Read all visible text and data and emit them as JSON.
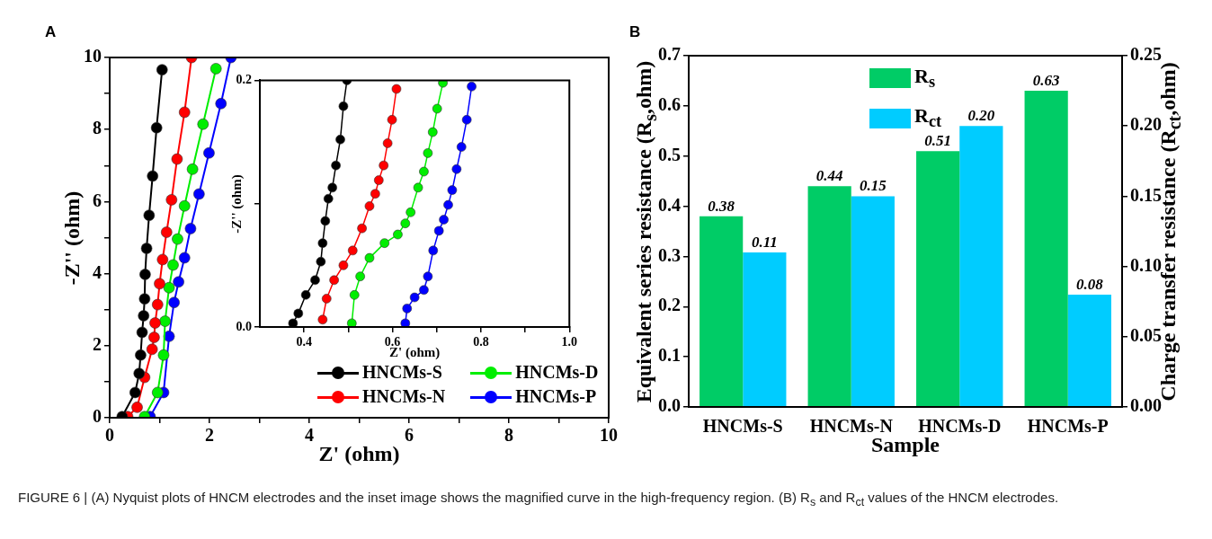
{
  "chart_data": [
    {
      "type": "line",
      "title": "A",
      "xlabel": "Z' (ohm)",
      "ylabel": "-Z'' (ohm)",
      "marker": "circle",
      "line_style": "solid",
      "grid": false,
      "legend": "bottom right",
      "xlim": [
        0,
        10
      ],
      "ylim": [
        0,
        10
      ],
      "xticks": [
        0,
        {
          "value": 1,
          "label": null
        },
        2,
        {
          "value": 3,
          "label": null
        },
        4,
        {
          "value": 5,
          "label": null
        },
        6,
        {
          "value": 7,
          "label": null
        },
        8,
        {
          "value": 9,
          "label": null
        },
        10
      ],
      "yticks": [
        0,
        {
          "value": 1,
          "label": null
        },
        2,
        {
          "value": 3,
          "label": null
        },
        4,
        {
          "value": 5,
          "label": null
        },
        6,
        {
          "value": 7,
          "label": null
        },
        8,
        {
          "value": 9,
          "label": null
        },
        10
      ],
      "annotations": [
        "FIGURE 6 | (A) Nyquist plots of HNCM electrodes and the inset image shows the magnified curve in the high-frequency region. (B) R$_{s}$ and R$_{ct}$ values of the HNCM electrodes."
      ],
      "series": [
        {
          "name": "HNCMs-S",
          "color": "#000000",
          "x": [
            0.25,
            0.51,
            0.59,
            0.62,
            0.65,
            0.68,
            0.7,
            0.71,
            0.74,
            0.79,
            0.86,
            0.94,
            1.05
          ],
          "values": [
            0.03,
            0.7,
            1.23,
            1.74,
            2.37,
            2.83,
            3.3,
            3.98,
            4.7,
            5.62,
            6.71,
            8.05,
            9.66
          ]
        },
        {
          "name": "HNCMs-N",
          "color": "#ff0000",
          "x": [
            0.36,
            0.55,
            0.7,
            0.85,
            0.89,
            0.91,
            0.96,
            1.0,
            1.06,
            1.14,
            1.24,
            1.35,
            1.5,
            1.64
          ],
          "values": [
            0.03,
            0.29,
            1.12,
            1.9,
            2.23,
            2.63,
            3.14,
            3.72,
            4.39,
            5.15,
            6.05,
            7.18,
            8.48,
            10
          ]
        },
        {
          "name": "HNCMs-D",
          "color": "#00ee00",
          "x": [
            0.7,
            0.96,
            1.08,
            1.11,
            1.19,
            1.27,
            1.36,
            1.5,
            1.66,
            1.87,
            2.13
          ],
          "values": [
            0.03,
            0.7,
            1.74,
            2.68,
            3.61,
            4.24,
            4.96,
            5.88,
            6.9,
            8.15,
            9.69
          ]
        },
        {
          "name": "HNCMs-P",
          "color": "#0000ff",
          "x": [
            0.81,
            1.08,
            1.19,
            1.29,
            1.38,
            1.5,
            1.62,
            1.79,
            1.99,
            2.23,
            2.43
          ],
          "values": [
            0.03,
            0.7,
            2.26,
            3.2,
            3.77,
            4.44,
            5.25,
            6.21,
            7.35,
            8.72,
            10
          ]
        }
      ]
    },
    {
      "type": "line",
      "xlabel": "Z' (ohm)",
      "ylabel": "-Z'' (ohm)",
      "marker": "circle",
      "line_style": "solid",
      "grid": false,
      "xlim": [
        0.3,
        1.0
      ],
      "ylim": [
        0,
        0.2
      ],
      "xticks": [
        0.4,
        {
          "value": 0.5,
          "label": null
        },
        0.6,
        {
          "value": 0.7,
          "label": null
        },
        0.8,
        {
          "value": 0.9,
          "label": null
        },
        {
          "value": 1.0,
          "label": "1.0"
        }
      ],
      "yticks": [
        {
          "value": 0,
          "label": "0.0"
        },
        {
          "value": 0.1,
          "label": null
        },
        {
          "value": 0.2,
          "label": "0.2"
        }
      ],
      "series": [
        {
          "color": "#000000",
          "x": [
            0.375,
            0.387,
            0.404,
            0.425,
            0.438,
            0.442,
            0.448,
            0.455,
            0.464,
            0.472,
            0.482,
            0.489,
            0.497
          ],
          "values": [
            0.003,
            0.011,
            0.026,
            0.038,
            0.053,
            0.068,
            0.086,
            0.104,
            0.113,
            0.131,
            0.152,
            0.179,
            0.2
          ]
        },
        {
          "color": "#ff0000",
          "x": [
            0.442,
            0.451,
            0.468,
            0.489,
            0.51,
            0.531,
            0.548,
            0.561,
            0.569,
            0.58,
            0.589,
            0.599,
            0.609
          ],
          "values": [
            0.006,
            0.023,
            0.038,
            0.05,
            0.062,
            0.08,
            0.098,
            0.108,
            0.119,
            0.131,
            0.149,
            0.168,
            0.193
          ]
        },
        {
          "color": "#00ee00",
          "x": [
            0.508,
            0.514,
            0.527,
            0.548,
            0.582,
            0.612,
            0.629,
            0.641,
            0.658,
            0.671,
            0.68,
            0.691,
            0.701,
            0.714
          ],
          "values": [
            0.003,
            0.026,
            0.041,
            0.056,
            0.068,
            0.075,
            0.084,
            0.093,
            0.113,
            0.126,
            0.141,
            0.158,
            0.177,
            0.198
          ]
        },
        {
          "color": "#0000ff",
          "x": [
            0.629,
            0.633,
            0.65,
            0.671,
            0.68,
            0.692,
            0.705,
            0.716,
            0.726,
            0.735,
            0.745,
            0.756,
            0.768,
            0.779
          ],
          "values": [
            0.003,
            0.015,
            0.024,
            0.03,
            0.041,
            0.062,
            0.078,
            0.087,
            0.099,
            0.111,
            0.128,
            0.146,
            0.168,
            0.195
          ]
        }
      ]
    },
    {
      "type": "bar",
      "title": "B",
      "xlabel": "Sample",
      "ylabel": "Equivalent series resistance (R$_{s}$,ohm)",
      "y2label": "Charge transfer resistance (R$_{ct}$,ohm)",
      "grid": false,
      "legend": "top",
      "categories": [
        "HNCMs-S",
        "HNCMs-N",
        "HNCMs-D",
        "HNCMs-P"
      ],
      "ylim": [
        0,
        0.7
      ],
      "yticks": [
        {
          "value": 0,
          "label": "0.0"
        },
        0.1,
        0.2,
        0.3,
        0.4,
        0.5,
        0.6,
        0.7
      ],
      "y2lim": [
        0,
        0.25
      ],
      "y2ticks": [
        {
          "value": 0,
          "label": "0.00"
        },
        0.05,
        {
          "value": 0.1,
          "label": "0.10"
        },
        0.15,
        {
          "value": 0.2,
          "label": "0.20"
        },
        0.25
      ],
      "series": [
        {
          "name": "R$_{s}$",
          "color": "#00cc66",
          "values": [
            0.38,
            0.44,
            0.51,
            0.63
          ],
          "value_labels": [
            "0.38",
            "0.44",
            "0.51",
            "0.63"
          ]
        },
        {
          "name": "R$_{ct}$",
          "color": "#00ccff",
          "axis": "y2",
          "values": [
            0.11,
            0.15,
            0.2,
            0.08
          ],
          "value_labels": [
            "0.11",
            "0.15",
            "0.20",
            "0.08"
          ]
        }
      ]
    }
  ]
}
